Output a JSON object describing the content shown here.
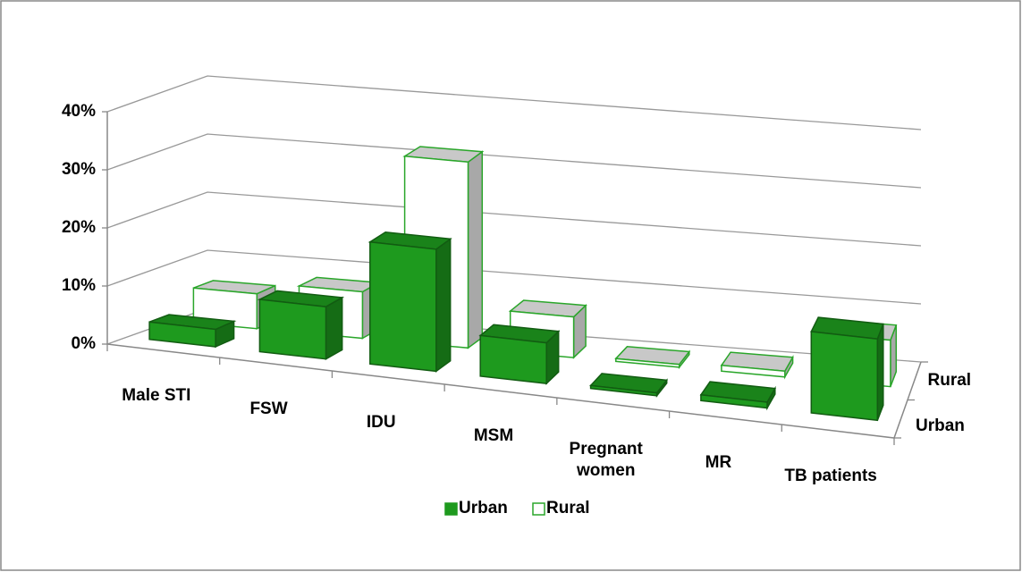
{
  "chart_data": {
    "type": "bar3d",
    "categories": [
      "Male STI",
      "FSW",
      "IDU",
      "MSM",
      "Pregnant women",
      "MR",
      "TB patients"
    ],
    "series": [
      {
        "name": "Urban",
        "color": "#1e9a1e",
        "values": [
          3,
          9,
          21,
          7,
          0.5,
          1,
          14
        ]
      },
      {
        "name": "Rural",
        "color": "#ffffff",
        "values": [
          6,
          8,
          32,
          7,
          0.5,
          1,
          8
        ]
      }
    ],
    "edge_color": "#2aa62a",
    "ylim": [
      0,
      40
    ],
    "yticks": [
      {
        "value": 0,
        "label": "0%"
      },
      {
        "value": 10,
        "label": "10%"
      },
      {
        "value": 20,
        "label": "20%"
      },
      {
        "value": 30,
        "label": "30%"
      },
      {
        "value": 40,
        "label": "40%"
      }
    ],
    "grid": true
  }
}
